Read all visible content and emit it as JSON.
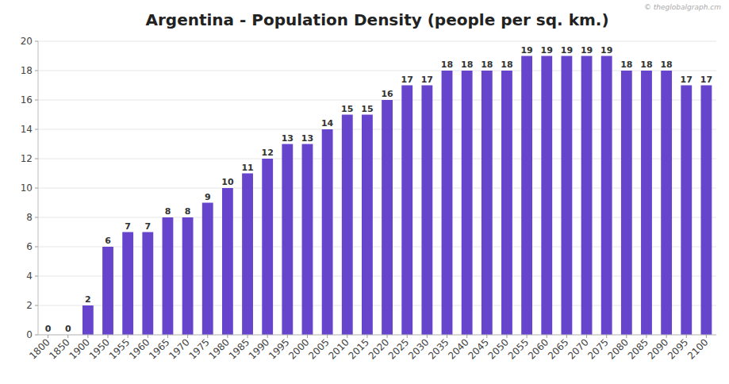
{
  "chart_data": {
    "type": "bar",
    "title": "Argentina - Population Density (people per sq. km.)",
    "categories": [
      1800,
      1850,
      1900,
      1950,
      1955,
      1960,
      1965,
      1970,
      1975,
      1980,
      1985,
      1990,
      1995,
      2000,
      2005,
      2010,
      2015,
      2020,
      2025,
      2030,
      2035,
      2040,
      2045,
      2050,
      2055,
      2060,
      2065,
      2070,
      2075,
      2080,
      2085,
      2090,
      2095,
      2100
    ],
    "values": [
      0,
      0,
      2,
      6,
      7,
      7,
      8,
      8,
      9,
      10,
      11,
      12,
      13,
      13,
      14,
      15,
      15,
      16,
      17,
      17,
      18,
      18,
      18,
      18,
      19,
      19,
      19,
      19,
      19,
      18,
      18,
      18,
      17,
      17
    ],
    "color": "#6644cc",
    "ylim": [
      0,
      20
    ],
    "yticks": [
      0,
      2,
      4,
      6,
      8,
      10,
      12,
      14,
      16,
      18,
      20
    ],
    "grid": true,
    "data_labels": true,
    "annotations": [
      "© theglobalgraph.cm"
    ]
  }
}
